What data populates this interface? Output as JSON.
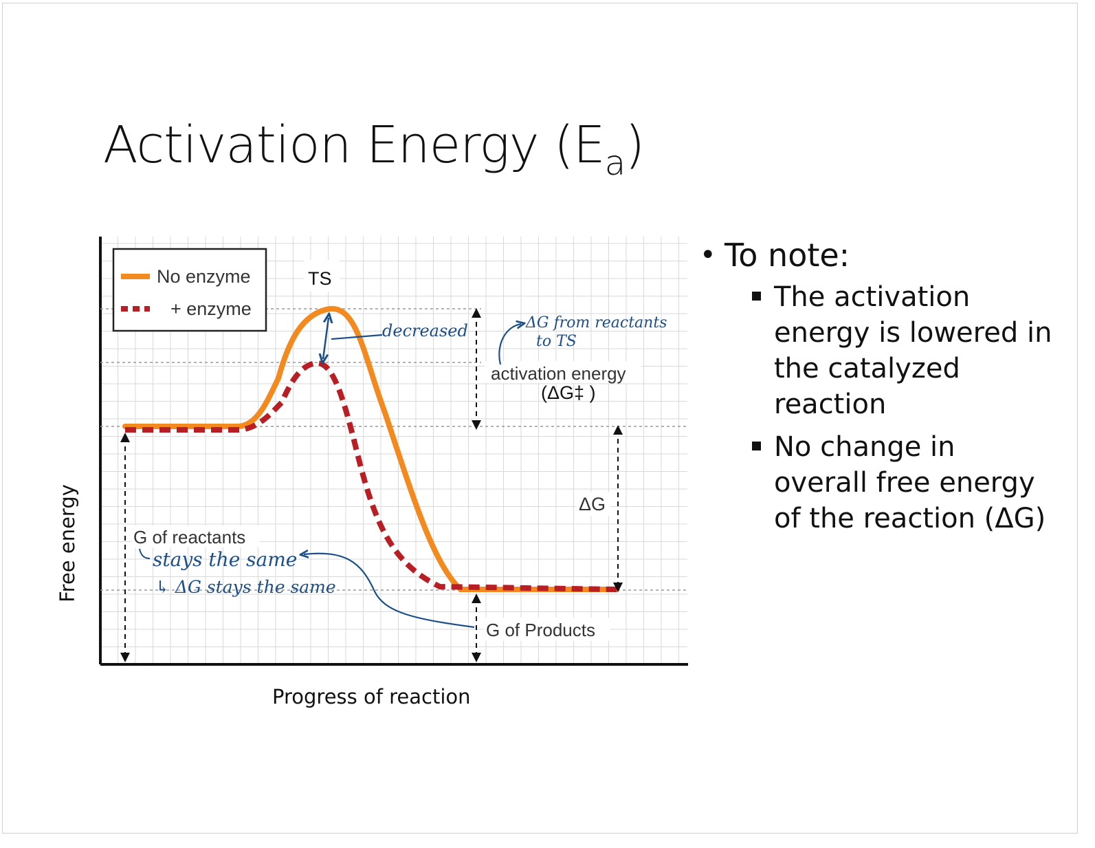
{
  "slide": {
    "title_main": "Activation Energy (E",
    "title_sub": "a",
    "title_end": ")"
  },
  "figure": {
    "ylabel": "Free energy",
    "xlabel": "Progress of reaction",
    "legend": [
      {
        "label": "No enzyme",
        "color": "#f28a1f",
        "style": "solid"
      },
      {
        "label": "+ enzyme",
        "color": "#b81f24",
        "style": "dashed"
      }
    ],
    "labels": {
      "ts": "TS",
      "activation": "activation energy",
      "activation_symbol": "(ΔG‡ )",
      "delta_g": "ΔG",
      "g_reactants": "G of reactants",
      "g_products": "G of Products"
    },
    "annotations": {
      "decreased": "decreased",
      "ts_note_1": "ΔG from reactants",
      "ts_note_2": "to TS",
      "same_1": "stays the same",
      "same_2": "↳ ΔG stays the same"
    },
    "colors": {
      "no_enzyme": "#f28a1f",
      "enzyme": "#b81f24",
      "ink": "#1b4f8a"
    }
  },
  "notes": {
    "heading": "To note:",
    "bullets": [
      "The activation energy is lowered in the catalyzed reaction",
      "No change in overall free energy of the reaction (ΔG)"
    ]
  }
}
